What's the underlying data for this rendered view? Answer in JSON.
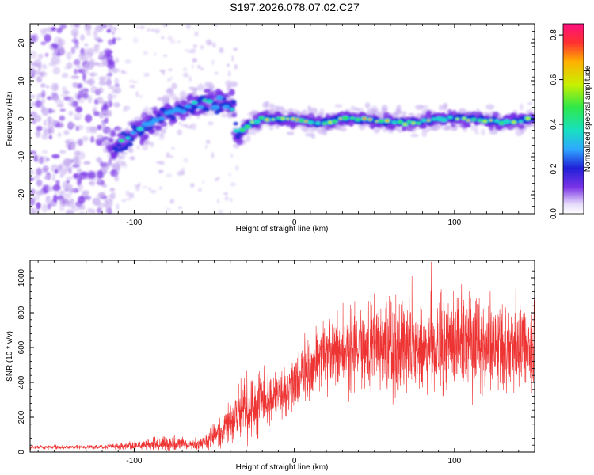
{
  "title": "S197.2026.078.07.02.C27",
  "chart_data": [
    {
      "type": "heatmap",
      "xlabel": "Height of straight line (km)",
      "ylabel": "Frequency (Hz)",
      "xlim": [
        -165,
        150
      ],
      "ylim": [
        -25,
        25
      ],
      "x_ticks": [
        -100,
        0,
        100
      ],
      "y_ticks": [
        -20,
        -10,
        0,
        10,
        20
      ],
      "ridge": [
        {
          "x": -112,
          "y": -8
        },
        {
          "x": -100,
          "y": -4
        },
        {
          "x": -90,
          "y": -1
        },
        {
          "x": -75,
          "y": 2
        },
        {
          "x": -60,
          "y": 4
        },
        {
          "x": -45,
          "y": 4
        },
        {
          "x": -38,
          "y": 3
        },
        {
          "x": -36,
          "y": -5
        },
        {
          "x": -30,
          "y": -2
        },
        {
          "x": -20,
          "y": 0
        },
        {
          "x": -10,
          "y": 0
        },
        {
          "x": 0,
          "y": 0
        },
        {
          "x": 10,
          "y": -1
        },
        {
          "x": 20,
          "y": -1
        },
        {
          "x": 30,
          "y": 0
        },
        {
          "x": 45,
          "y": 0
        },
        {
          "x": 60,
          "y": -1
        },
        {
          "x": 75,
          "y": -1
        },
        {
          "x": 90,
          "y": 0
        },
        {
          "x": 100,
          "y": 0
        },
        {
          "x": 115,
          "y": 0
        },
        {
          "x": 130,
          "y": -1
        },
        {
          "x": 150,
          "y": 0
        }
      ],
      "colorbar": {
        "label": "Normalized spectral amplitude",
        "range": [
          0,
          0.85
        ],
        "ticks": [
          "0.0",
          "0.2",
          "0.4",
          "0.6",
          "0.8"
        ],
        "tick_values": [
          0,
          0.2,
          0.4,
          0.6,
          0.8
        ]
      },
      "colors": [
        "#f3eefd",
        "#c8b0f0",
        "#7a33e6",
        "#1a2bd6",
        "#2ea8ff",
        "#18e0c0",
        "#2ee84a",
        "#c8f000",
        "#ffb000",
        "#ff3030",
        "#ff1080"
      ]
    },
    {
      "type": "line",
      "xlabel": "Height of straight line (km)",
      "ylabel": "SNR (10 * v/v)",
      "xlim": [
        -165,
        150
      ],
      "ylim": [
        0,
        1100
      ],
      "x_ticks": [
        -100,
        0,
        100
      ],
      "y_ticks": [
        0,
        200,
        400,
        600,
        800,
        1000
      ],
      "line_color": "#ee3333",
      "envelope": [
        {
          "x": -165,
          "mean": 28,
          "spread": 10
        },
        {
          "x": -120,
          "mean": 30,
          "spread": 12
        },
        {
          "x": -95,
          "mean": 40,
          "spread": 25
        },
        {
          "x": -80,
          "mean": 50,
          "spread": 40
        },
        {
          "x": -60,
          "mean": 45,
          "spread": 30
        },
        {
          "x": -45,
          "mean": 120,
          "spread": 90
        },
        {
          "x": -35,
          "mean": 210,
          "spread": 150
        },
        {
          "x": -25,
          "mean": 250,
          "spread": 170
        },
        {
          "x": -10,
          "mean": 330,
          "spread": 130
        },
        {
          "x": 5,
          "mean": 420,
          "spread": 150
        },
        {
          "x": 20,
          "mean": 560,
          "spread": 200
        },
        {
          "x": 40,
          "mean": 600,
          "spread": 230
        },
        {
          "x": 60,
          "mean": 610,
          "spread": 250
        },
        {
          "x": 80,
          "mean": 600,
          "spread": 250
        },
        {
          "x": 100,
          "mean": 630,
          "spread": 260
        },
        {
          "x": 120,
          "mean": 620,
          "spread": 250
        },
        {
          "x": 150,
          "mean": 610,
          "spread": 230
        }
      ]
    }
  ]
}
